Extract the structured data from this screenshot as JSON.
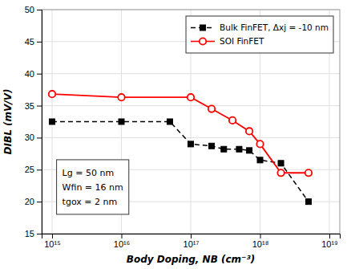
{
  "chart_data": {
    "type": "line",
    "xlabel": "Body Doping, NB (cm⁻³)",
    "ylabel": "DIBL (mV/V)",
    "log": "x",
    "grid": true,
    "legend": "upper right",
    "xlim": [
      707945784384138.0,
      14125375446227554000
    ],
    "xticks": [
      {
        "value": 1000000000000000.0,
        "label": "10¹⁵"
      },
      {
        "value": 1e+16,
        "label": "10¹⁶"
      },
      {
        "value": 1e+17,
        "label": "10¹⁷"
      },
      {
        "value": 1e+18,
        "label": "10¹⁸"
      },
      {
        "value": 1e+19,
        "label": "10¹⁹"
      }
    ],
    "ylim": [
      15,
      50
    ],
    "yticks": [
      15,
      20,
      25,
      30,
      35,
      40,
      45,
      50
    ],
    "annotations": [
      "Lg = 50 nm",
      "Wfin = 16 nm",
      "tgox = 2 nm"
    ],
    "series": [
      {
        "name": "Bulk FinFET, Δxj = -10 nm",
        "color": "black",
        "marker": "square",
        "line_style": "dashed",
        "x": [
          1000000000000000.0,
          1e+16,
          5e+16,
          1e+17,
          2e+17,
          3e+17,
          5e+17,
          7e+17,
          1e+18,
          2e+18,
          5e+18
        ],
        "values": [
          32.5,
          32.5,
          32.5,
          29.0,
          28.7,
          28.2,
          28.2,
          28.0,
          26.5,
          26.0,
          20.0
        ]
      },
      {
        "name": "SOI FinFET",
        "color": "red",
        "marker": "open-circle",
        "line_style": "solid",
        "x": [
          1000000000000000.0,
          1e+16,
          1e+17,
          2e+17,
          4e+17,
          7e+17,
          1e+18,
          2e+18,
          5e+18
        ],
        "values": [
          36.8,
          36.3,
          36.3,
          34.5,
          32.7,
          31.0,
          29.0,
          24.5,
          24.5
        ]
      }
    ]
  }
}
